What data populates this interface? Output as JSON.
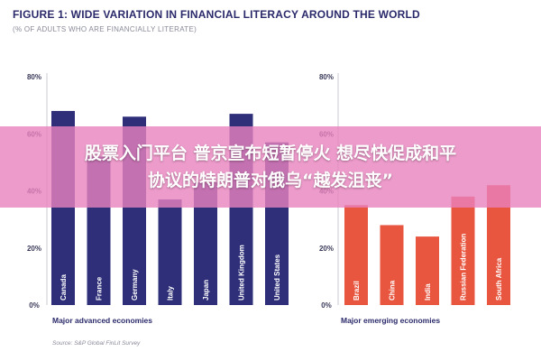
{
  "title": "FIGURE 1: WIDE VARIATION IN FINANCIAL LITERACY AROUND THE WORLD",
  "subtitle": "(% OF ADULTS WHO ARE FINANCIALLY LITERATE)",
  "source": "Source: S&P Global FinLit Survey",
  "overlay": {
    "line1": "股票入门平台 普京宣布短暂停火 想尽快促成和平",
    "line2": "协议的特朗普对俄乌“越发沮丧”",
    "color": "#e882be"
  },
  "chart_data": [
    {
      "type": "bar",
      "panel_label": "Major advanced economies",
      "categories": [
        "Canada",
        "France",
        "Germany",
        "Italy",
        "Japan",
        "United Kingdom",
        "United States"
      ],
      "values": [
        68,
        52,
        66,
        37,
        43,
        67,
        57
      ],
      "ylim": [
        0,
        80
      ],
      "yticks": [
        "0%",
        "20%",
        "40%",
        "60%",
        "80%"
      ],
      "color": "#2e2f78",
      "grid": false
    },
    {
      "type": "bar",
      "panel_label": "Major emerging economies",
      "categories": [
        "Brazil",
        "China",
        "India",
        "Russian Federation",
        "South Africa"
      ],
      "values": [
        35,
        28,
        24,
        38,
        42
      ],
      "ylim": [
        0,
        80
      ],
      "yticks": [
        "0%",
        "20%",
        "40%",
        "60%",
        "80%"
      ],
      "color": "#e8563f",
      "grid": false
    }
  ]
}
